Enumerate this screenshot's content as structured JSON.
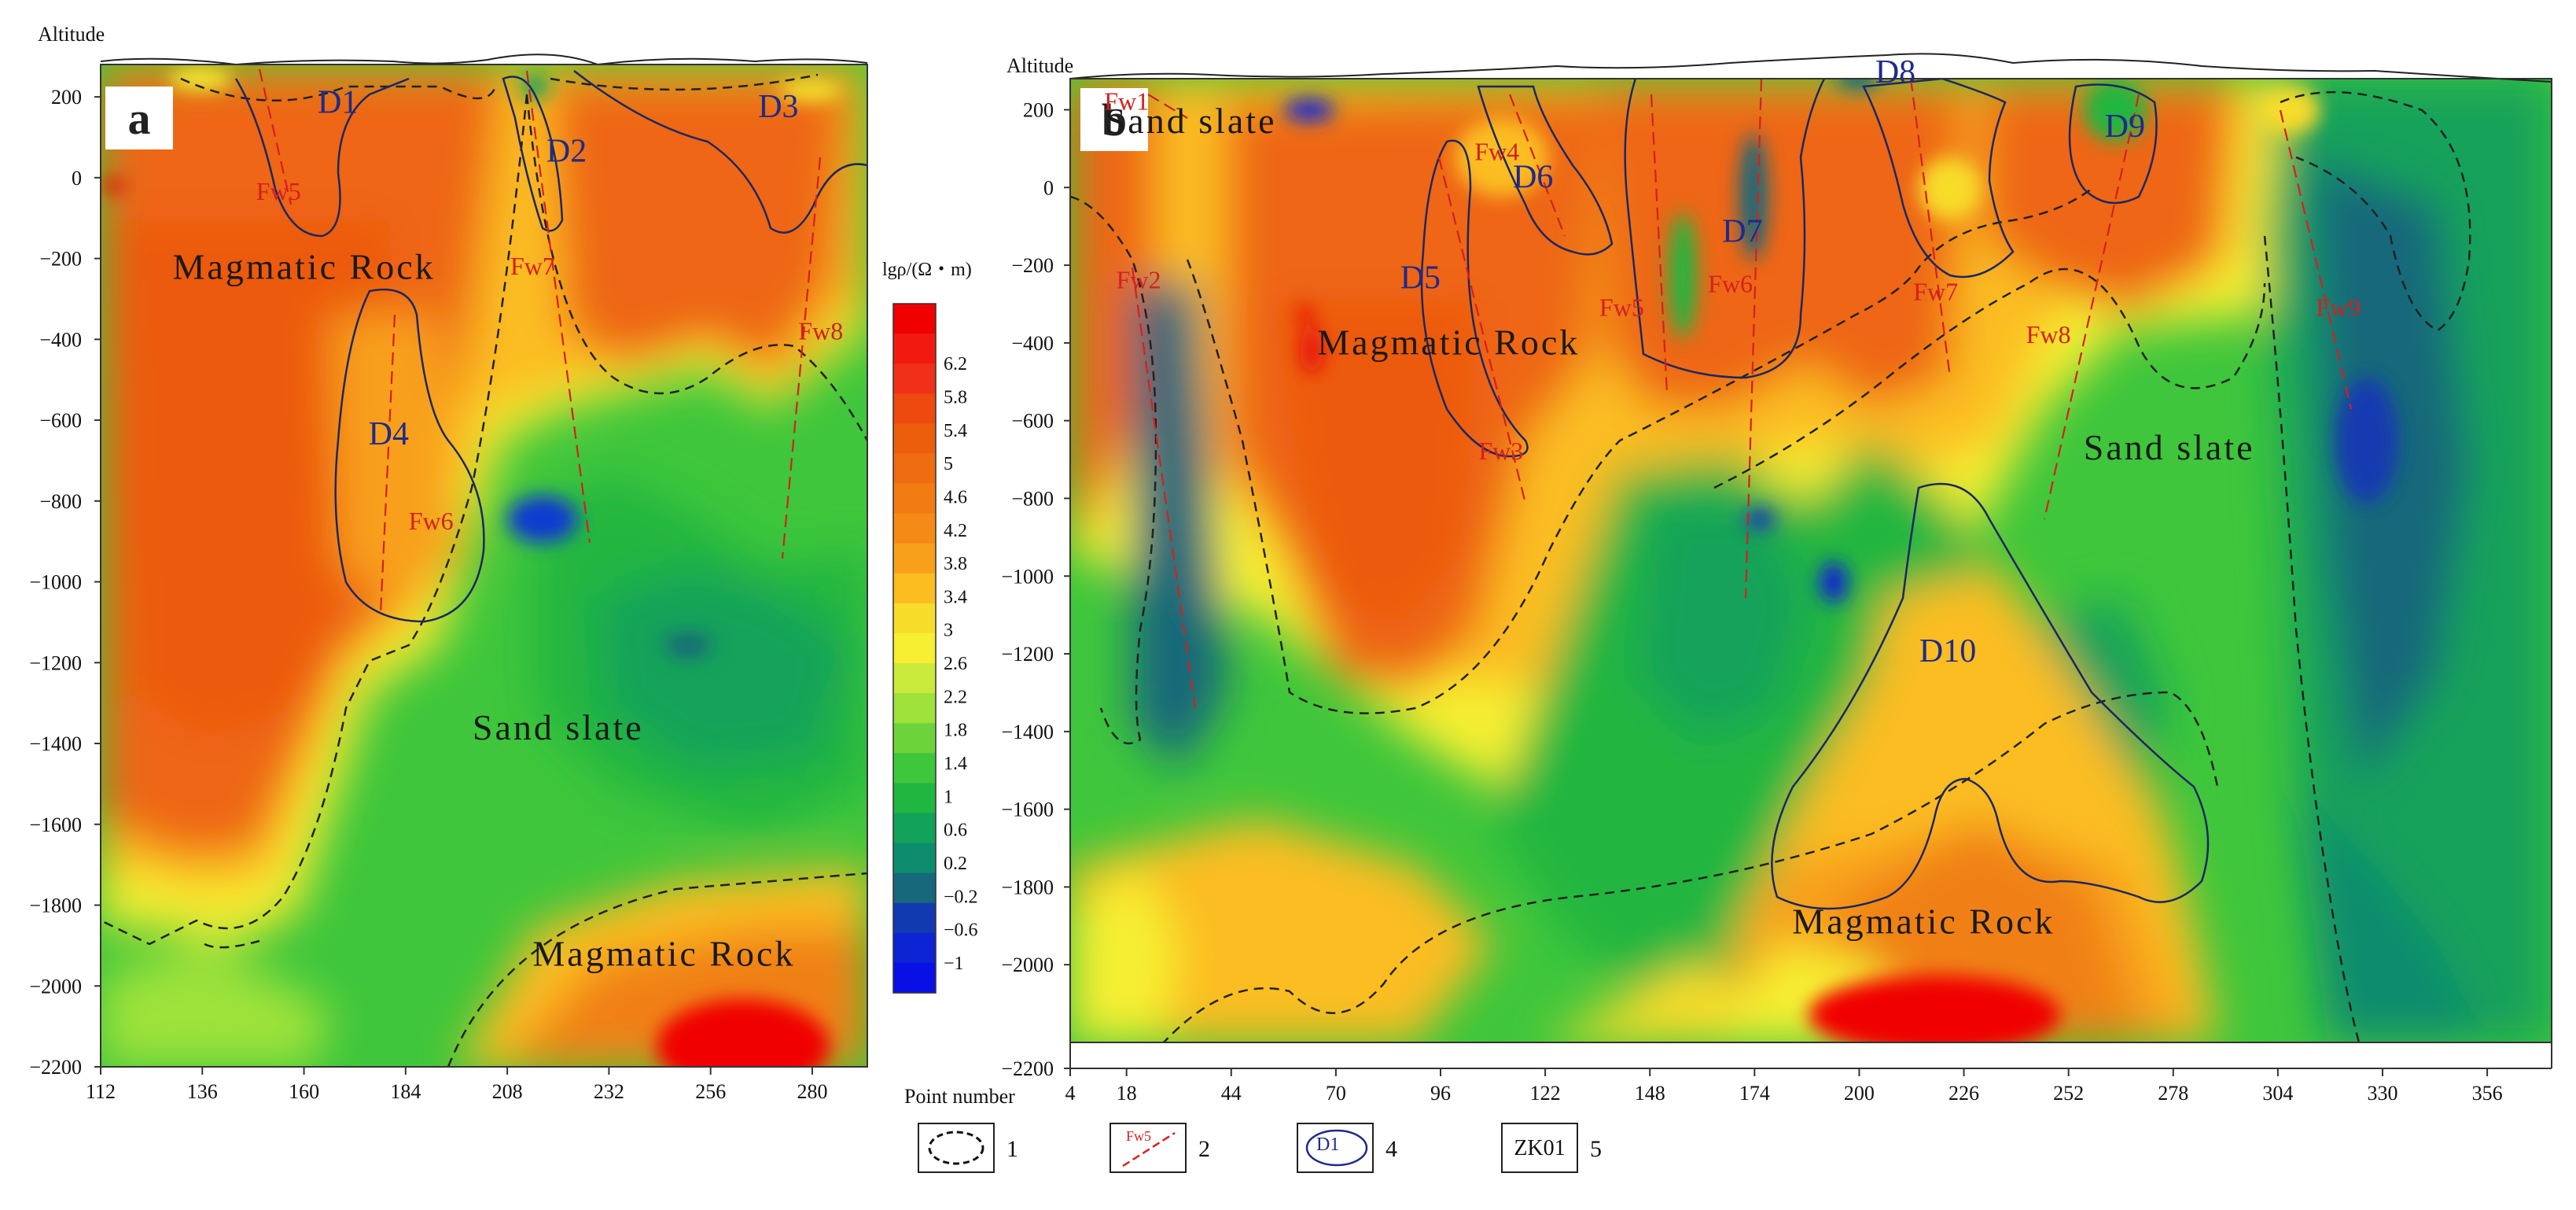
{
  "figure": {
    "point_number_label": "Point number",
    "legend_items": [
      {
        "number": "1",
        "symbol": "dashed-closed-boundary",
        "sample_text": ""
      },
      {
        "number": "2",
        "symbol": "red-dashed-fault-line",
        "sample_text": "Fw5"
      },
      {
        "number": "4",
        "symbol": "blue-closed-anomaly",
        "sample_text": "D1"
      },
      {
        "number": "5",
        "symbol": "box-label",
        "sample_text": "ZK01"
      }
    ]
  },
  "colorbar": {
    "title": "lgρ/(Ω・m)",
    "ticks": [
      "6.2",
      "5.8",
      "5.4",
      "5",
      "4.6",
      "4.2",
      "3.8",
      "3.4",
      "3",
      "2.6",
      "2.2",
      "1.8",
      "1.4",
      "1",
      "0.6",
      "0.2",
      "−0.2",
      "−0.6",
      "−1"
    ],
    "colors": [
      "#f00000",
      "#f21a10",
      "#f03018",
      "#ee4a10",
      "#ec5e0c",
      "#f06c10",
      "#f27c12",
      "#f58a16",
      "#f8a01c",
      "#fbbd20",
      "#f8dc2a",
      "#f6ef32",
      "#c9ea3a",
      "#9ee23a",
      "#6cd43a",
      "#3ec63c",
      "#20b640",
      "#12a25a",
      "#0e8c6e",
      "#16687a",
      "#123ab0",
      "#0c24d4",
      "#0810e6"
    ]
  },
  "chart_data": [
    {
      "type": "heatmap",
      "panel_letter": "a",
      "ylabel": "Altitude",
      "xlabel": "Point number",
      "x_ticks": [
        112,
        136,
        160,
        184,
        208,
        232,
        256,
        280
      ],
      "xlim": [
        112,
        293
      ],
      "y_ticks": [
        200,
        0,
        -200,
        -400,
        -600,
        -800,
        -1000,
        -1200,
        -1400,
        -1600,
        -1800,
        -2000,
        -2200
      ],
      "ylim": [
        -2200,
        280
      ],
      "value_unit": "lgρ/(Ω・m)",
      "regions": [
        {
          "name": "Magmatic Rock",
          "x": 160,
          "y": -250
        },
        {
          "name": "Sand slate",
          "x": 220,
          "y": -1390
        },
        {
          "name": "Magmatic Rock",
          "x": 245,
          "y": -1950
        }
      ],
      "anomalies": [
        {
          "name": "D1",
          "x": 168,
          "y": 160
        },
        {
          "name": "D2",
          "x": 222,
          "y": 40
        },
        {
          "name": "D3",
          "x": 272,
          "y": 150
        },
        {
          "name": "D4",
          "x": 180,
          "y": -660
        }
      ],
      "faults": [
        {
          "name": "Fw5",
          "x": 154,
          "y": -55
        },
        {
          "name": "Fw7",
          "x": 214,
          "y": -240
        },
        {
          "name": "Fw8",
          "x": 282,
          "y": -400
        },
        {
          "name": "Fw6",
          "x": 190,
          "y": -870
        }
      ]
    },
    {
      "type": "heatmap",
      "panel_letter": "b",
      "ylabel": "Altitude",
      "xlabel": "Point number",
      "x_ticks": [
        4,
        18,
        44,
        70,
        96,
        122,
        148,
        174,
        200,
        226,
        252,
        278,
        304,
        330,
        356
      ],
      "xlim": [
        4,
        372
      ],
      "y_ticks": [
        200,
        0,
        -200,
        -400,
        -600,
        -800,
        -1000,
        -1200,
        -1400,
        -1600,
        -1800,
        -2000,
        -2200
      ],
      "ylim": [
        -2200,
        280
      ],
      "value_unit": "lgρ/(Ω・m)",
      "regions": [
        {
          "name": "Sand slate",
          "x": 34,
          "y": 140
        },
        {
          "name": "Magmatic Rock",
          "x": 98,
          "y": -430
        },
        {
          "name": "Sand slate",
          "x": 277,
          "y": -700
        },
        {
          "name": "Magmatic Rock",
          "x": 216,
          "y": -1920
        }
      ],
      "anomalies": [
        {
          "name": "D5",
          "x": 91,
          "y": -260
        },
        {
          "name": "D6",
          "x": 119,
          "y": 0
        },
        {
          "name": "D7",
          "x": 171,
          "y": -140
        },
        {
          "name": "D8",
          "x": 209,
          "y": 270
        },
        {
          "name": "D9",
          "x": 266,
          "y": 130
        },
        {
          "name": "D10",
          "x": 222,
          "y": -1220
        }
      ],
      "faults": [
        {
          "name": "Fw1",
          "x": 18,
          "y": 200
        },
        {
          "name": "Fw2",
          "x": 21,
          "y": -260
        },
        {
          "name": "Fw3",
          "x": 111,
          "y": -700
        },
        {
          "name": "Fw4",
          "x": 110,
          "y": 70
        },
        {
          "name": "Fw5",
          "x": 141,
          "y": -330
        },
        {
          "name": "Fw6",
          "x": 168,
          "y": -270
        },
        {
          "name": "Fw7",
          "x": 219,
          "y": -290
        },
        {
          "name": "Fw8",
          "x": 247,
          "y": -400
        },
        {
          "name": "Fw9",
          "x": 319,
          "y": -330
        }
      ]
    }
  ]
}
